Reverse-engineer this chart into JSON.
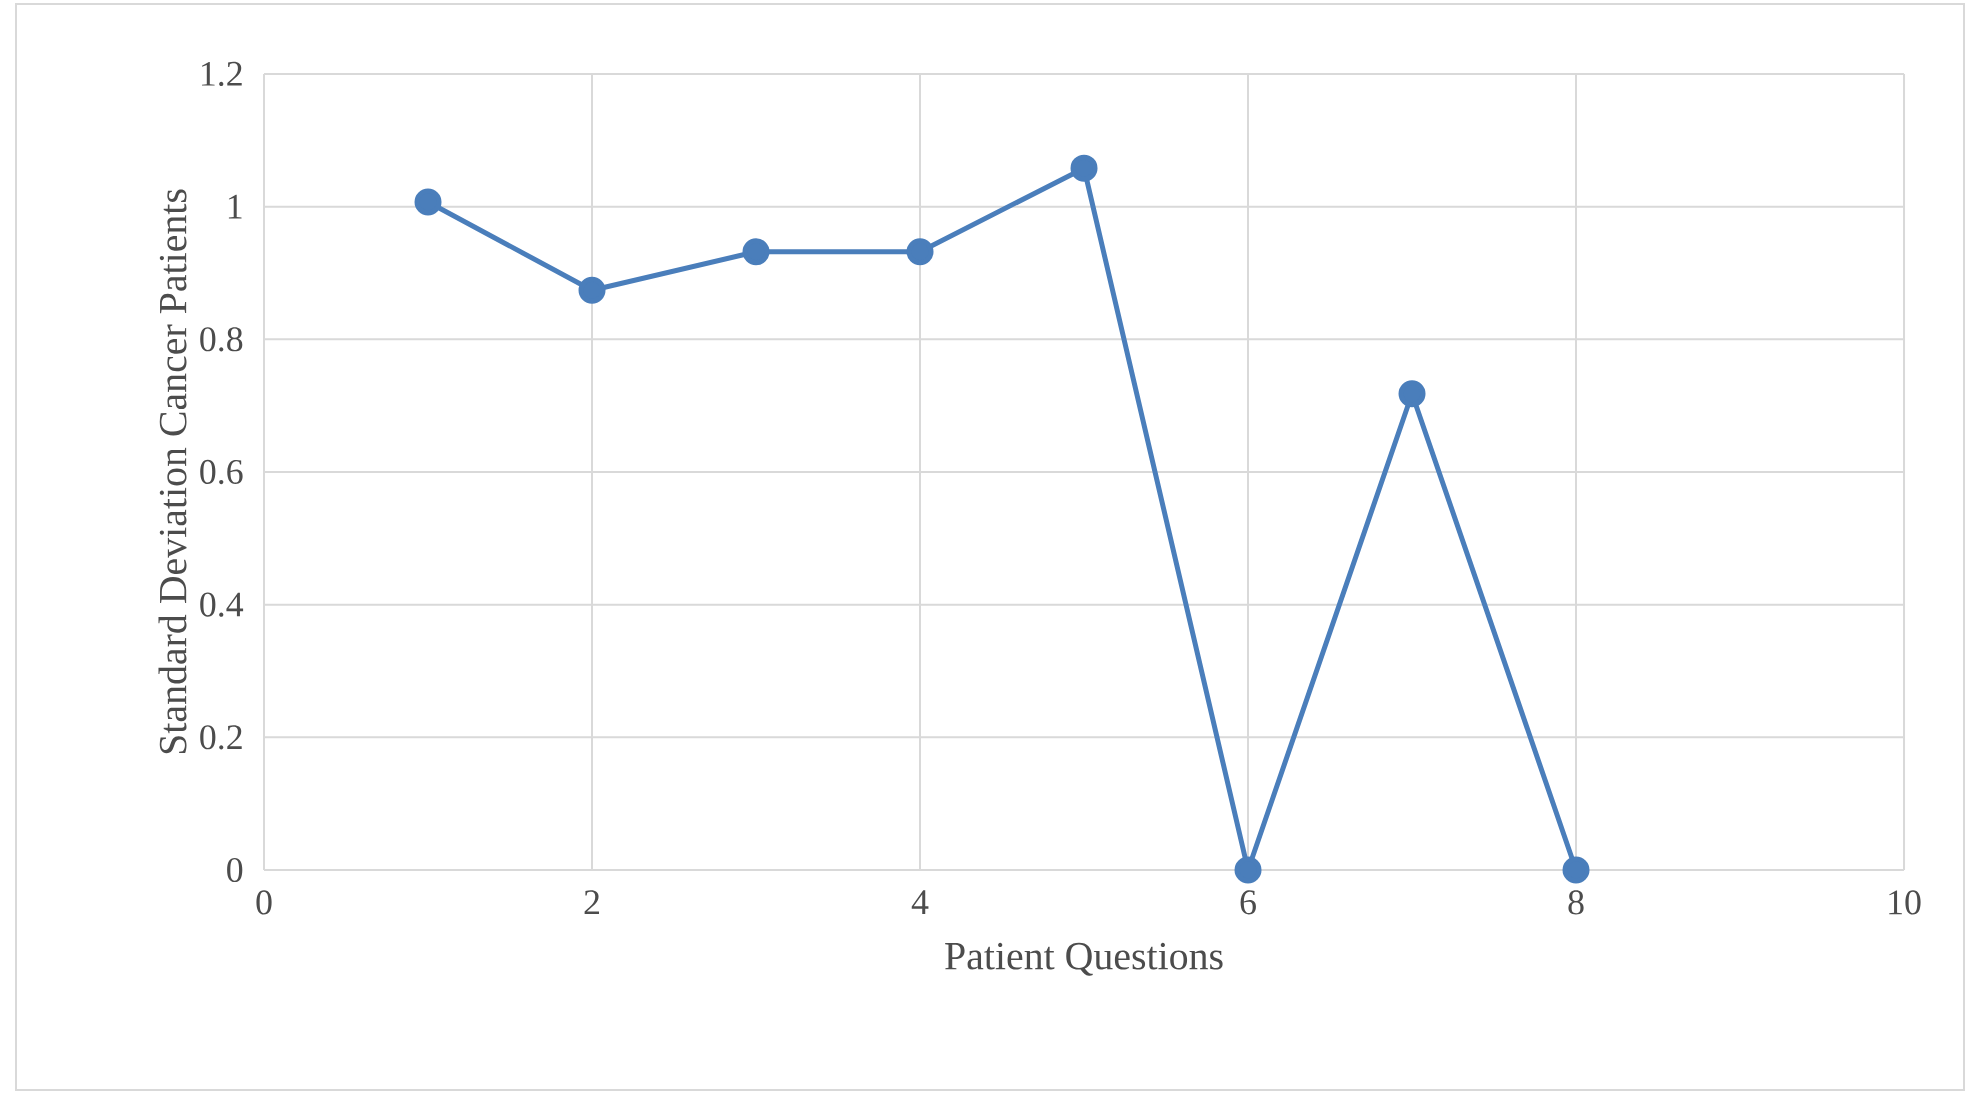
{
  "chart_data": {
    "type": "line",
    "xlabel": "Patient Questions",
    "ylabel": "Standard Deviation Cancer Patients",
    "x": [
      1,
      2,
      3,
      4,
      5,
      6,
      7,
      8
    ],
    "series": [
      {
        "color": "#4a7ebb",
        "values": [
          1.007,
          0.874,
          0.932,
          0.932,
          1.058,
          0,
          0.718,
          0
        ]
      }
    ],
    "xlim": [
      0,
      10
    ],
    "xticks": [
      0,
      2,
      4,
      6,
      8,
      10
    ],
    "ylim": [
      0,
      1.2
    ],
    "yticks": [
      0,
      0.2,
      0.4,
      0.6,
      0.8,
      1,
      1.2
    ],
    "grid": true,
    "marker": "circle",
    "line_style": "solid"
  }
}
